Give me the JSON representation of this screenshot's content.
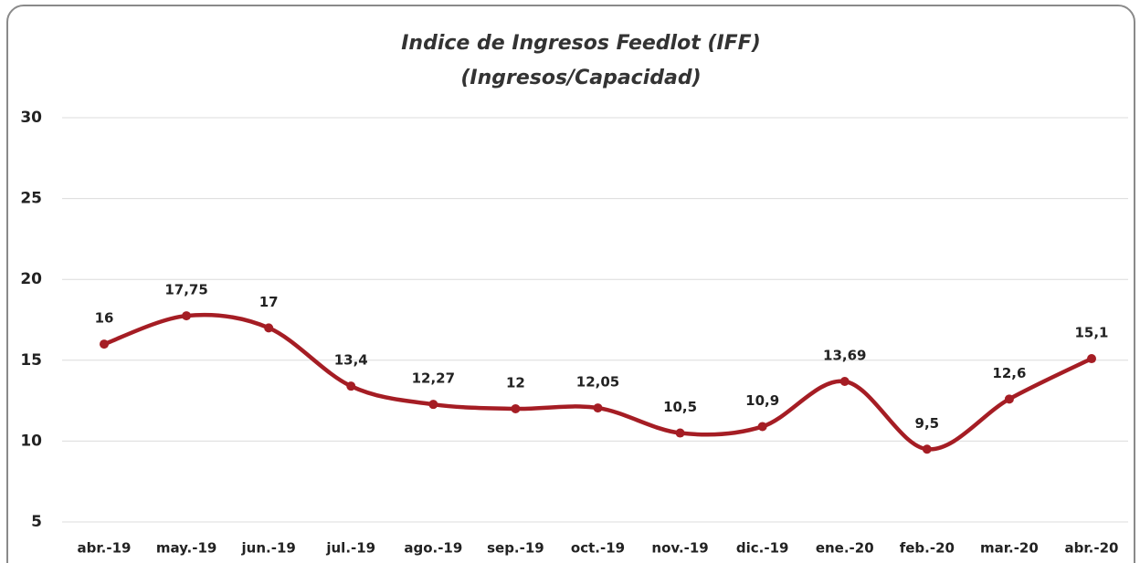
{
  "chart_data": {
    "type": "line",
    "title": "Indice de Ingresos Feedlot (IFF)",
    "subtitle": "(Ingresos/Capacidad)",
    "categories": [
      "abr.-19",
      "may.-19",
      "jun.-19",
      "jul.-19",
      "ago.-19",
      "sep.-19",
      "oct.-19",
      "nov.-19",
      "dic.-19",
      "ene.-20",
      "feb.-20",
      "mar.-20",
      "abr.-20"
    ],
    "values": [
      16,
      17.75,
      17,
      13.4,
      12.27,
      12,
      12.05,
      10.5,
      10.9,
      13.69,
      9.5,
      12.6,
      15.1
    ],
    "value_labels": [
      "16",
      "17,75",
      "17",
      "13,4",
      "12,27",
      "12",
      "12,05",
      "10,5",
      "10,9",
      "13,69",
      "9,5",
      "12,6",
      "15,1"
    ],
    "color": "#a51d24",
    "ylim": [
      5,
      30
    ],
    "yticks": [
      5,
      10,
      15,
      20,
      25,
      30
    ],
    "grid": true,
    "smooth": true
  }
}
